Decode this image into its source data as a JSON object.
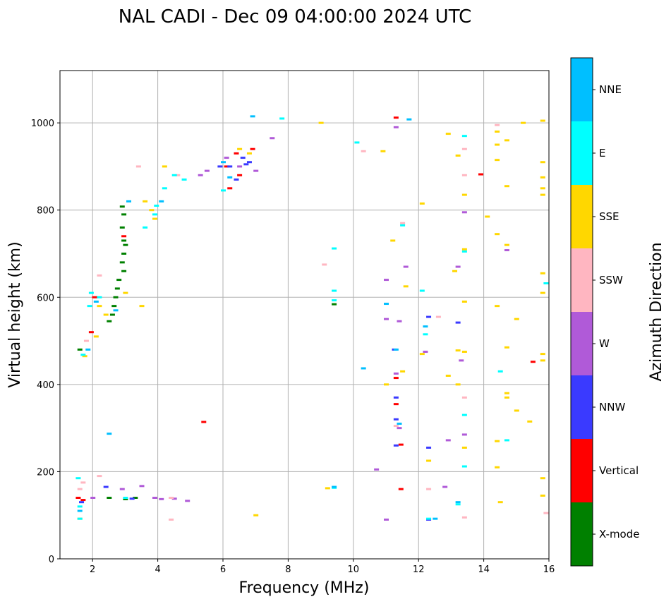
{
  "chart_data": {
    "type": "scatter",
    "title": "NAL CADI - Dec 09 04:00:00 2024 UTC",
    "xlabel": "Frequency (MHz)",
    "ylabel": "Virtual height (km)",
    "xlim": [
      1,
      16
    ],
    "ylim": [
      0,
      1120
    ],
    "xticks": [
      2,
      4,
      6,
      8,
      10,
      12,
      14,
      16
    ],
    "yticks": [
      0,
      200,
      400,
      600,
      800,
      1000
    ],
    "grid": true,
    "colorbar": {
      "title": "Azimuth Direction",
      "categories": [
        {
          "label": "X-mode",
          "color": "#008000"
        },
        {
          "label": "Vertical",
          "color": "#ff0000"
        },
        {
          "label": "NNW",
          "color": "#3a3aff"
        },
        {
          "label": "W",
          "color": "#b05ad8"
        },
        {
          "label": "SSW",
          "color": "#ffb6c1"
        },
        {
          "label": "SSE",
          "color": "#ffd700"
        },
        {
          "label": "E",
          "color": "#00ffff"
        },
        {
          "label": "NNE",
          "color": "#00bfff"
        }
      ]
    },
    "series": [
      {
        "name": "X-mode",
        "points": [
          [
            2.9,
            808
          ],
          [
            2.95,
            790
          ],
          [
            2.9,
            760
          ],
          [
            2.95,
            730
          ],
          [
            3.0,
            720
          ],
          [
            2.95,
            700
          ],
          [
            2.9,
            680
          ],
          [
            2.95,
            660
          ],
          [
            2.8,
            640
          ],
          [
            2.75,
            620
          ],
          [
            2.7,
            600
          ],
          [
            2.65,
            580
          ],
          [
            2.6,
            560
          ],
          [
            2.5,
            545
          ],
          [
            1.6,
            480
          ],
          [
            9.4,
            584
          ],
          [
            3.3,
            140
          ],
          [
            3.0,
            137
          ],
          [
            2.5,
            140
          ]
        ]
      },
      {
        "name": "Vertical",
        "points": [
          [
            1.55,
            140
          ],
          [
            1.7,
            135
          ],
          [
            2.05,
            600
          ],
          [
            1.95,
            520
          ],
          [
            6.2,
            850
          ],
          [
            6.1,
            900
          ],
          [
            6.5,
            880
          ],
          [
            6.9,
            940
          ],
          [
            5.4,
            314
          ],
          [
            11.3,
            1012
          ],
          [
            11.3,
            415
          ],
          [
            11.3,
            355
          ],
          [
            11.45,
            262
          ],
          [
            11.45,
            160
          ],
          [
            13.9,
            882
          ],
          [
            15.5,
            452
          ],
          [
            2.95,
            740
          ],
          [
            6.4,
            930
          ]
        ]
      },
      {
        "name": "NNW",
        "points": [
          [
            1.65,
            130
          ],
          [
            2.4,
            165
          ],
          [
            3.2,
            138
          ],
          [
            6.2,
            900
          ],
          [
            6.4,
            870
          ],
          [
            6.6,
            920
          ],
          [
            6.8,
            910
          ],
          [
            5.9,
            900
          ],
          [
            11.3,
            370
          ],
          [
            11.3,
            320
          ],
          [
            11.3,
            260
          ],
          [
            11.25,
            480
          ],
          [
            12.3,
            555
          ],
          [
            12.3,
            255
          ],
          [
            13.2,
            542
          ],
          [
            12.3,
            90
          ],
          [
            6.7,
            905
          ]
        ]
      },
      {
        "name": "W",
        "points": [
          [
            2.0,
            140
          ],
          [
            2.9,
            160
          ],
          [
            3.5,
            167
          ],
          [
            3.9,
            140
          ],
          [
            4.1,
            137
          ],
          [
            4.5,
            138
          ],
          [
            4.9,
            133
          ],
          [
            5.5,
            890
          ],
          [
            5.3,
            880
          ],
          [
            6.1,
            920
          ],
          [
            6.5,
            900
          ],
          [
            7.0,
            890
          ],
          [
            7.5,
            965
          ],
          [
            11.0,
            640
          ],
          [
            11.0,
            550
          ],
          [
            11.4,
            545
          ],
          [
            11.3,
            425
          ],
          [
            11.4,
            300
          ],
          [
            12.2,
            475
          ],
          [
            12.9,
            272
          ],
          [
            13.4,
            795
          ],
          [
            13.2,
            670
          ],
          [
            13.3,
            455
          ],
          [
            13.4,
            285
          ],
          [
            14.7,
            708
          ],
          [
            10.7,
            205
          ],
          [
            11.0,
            90
          ],
          [
            12.8,
            165
          ],
          [
            11.6,
            670
          ],
          [
            11.3,
            990
          ]
        ]
      },
      {
        "name": "SSW",
        "points": [
          [
            1.6,
            160
          ],
          [
            1.7,
            175
          ],
          [
            2.2,
            190
          ],
          [
            2.2,
            650
          ],
          [
            1.8,
            500
          ],
          [
            3.4,
            900
          ],
          [
            4.6,
            880
          ],
          [
            4.4,
            140
          ],
          [
            4.4,
            90
          ],
          [
            9.1,
            675
          ],
          [
            10.3,
            935
          ],
          [
            11.3,
            305
          ],
          [
            11.5,
            770
          ],
          [
            12.6,
            555
          ],
          [
            13.4,
            940
          ],
          [
            13.4,
            880
          ],
          [
            13.4,
            370
          ],
          [
            13.4,
            95
          ],
          [
            14.4,
            995
          ],
          [
            15.9,
            105
          ],
          [
            12.3,
            160
          ]
        ]
      },
      {
        "name": "SSE",
        "points": [
          [
            1.6,
            92
          ],
          [
            1.75,
            465
          ],
          [
            2.1,
            510
          ],
          [
            2.4,
            560
          ],
          [
            2.2,
            580
          ],
          [
            3.0,
            610
          ],
          [
            3.5,
            580
          ],
          [
            3.8,
            800
          ],
          [
            3.6,
            820
          ],
          [
            3.9,
            780
          ],
          [
            4.2,
            900
          ],
          [
            6.5,
            940
          ],
          [
            6.8,
            930
          ],
          [
            7.0,
            100
          ],
          [
            9.0,
            1000
          ],
          [
            10.9,
            935
          ],
          [
            11.0,
            400
          ],
          [
            11.2,
            730
          ],
          [
            11.6,
            625
          ],
          [
            11.5,
            430
          ],
          [
            12.1,
            815
          ],
          [
            12.1,
            470
          ],
          [
            12.3,
            225
          ],
          [
            12.9,
            975
          ],
          [
            13.2,
            925
          ],
          [
            13.1,
            660
          ],
          [
            13.2,
            478
          ],
          [
            13.2,
            400
          ],
          [
            12.9,
            420
          ],
          [
            13.4,
            835
          ],
          [
            13.4,
            710
          ],
          [
            13.4,
            590
          ],
          [
            13.4,
            475
          ],
          [
            13.4,
            255
          ],
          [
            14.1,
            785
          ],
          [
            14.4,
            980
          ],
          [
            14.4,
            950
          ],
          [
            14.4,
            915
          ],
          [
            14.4,
            745
          ],
          [
            14.4,
            580
          ],
          [
            14.4,
            270
          ],
          [
            14.5,
            130
          ],
          [
            14.4,
            210
          ],
          [
            14.7,
            960
          ],
          [
            14.7,
            855
          ],
          [
            14.7,
            720
          ],
          [
            14.7,
            485
          ],
          [
            14.7,
            380
          ],
          [
            14.7,
            370
          ],
          [
            15.0,
            550
          ],
          [
            15.0,
            340
          ],
          [
            15.2,
            1000
          ],
          [
            15.4,
            315
          ],
          [
            15.8,
            1005
          ],
          [
            15.8,
            910
          ],
          [
            15.8,
            875
          ],
          [
            15.8,
            850
          ],
          [
            15.8,
            835
          ],
          [
            15.8,
            655
          ],
          [
            15.8,
            610
          ],
          [
            15.8,
            470
          ],
          [
            15.8,
            455
          ],
          [
            15.8,
            185
          ],
          [
            15.8,
            145
          ],
          [
            9.2,
            162
          ]
        ]
      },
      {
        "name": "E",
        "points": [
          [
            1.55,
            185
          ],
          [
            1.6,
            120
          ],
          [
            1.7,
            468
          ],
          [
            1.9,
            580
          ],
          [
            1.95,
            610
          ],
          [
            2.2,
            600
          ],
          [
            3.0,
            140
          ],
          [
            3.6,
            760
          ],
          [
            3.9,
            790
          ],
          [
            3.95,
            810
          ],
          [
            4.2,
            850
          ],
          [
            4.5,
            880
          ],
          [
            4.8,
            870
          ],
          [
            6.0,
            845
          ],
          [
            7.8,
            1010
          ],
          [
            9.4,
            712
          ],
          [
            9.4,
            615
          ],
          [
            9.4,
            593
          ],
          [
            10.1,
            955
          ],
          [
            11.5,
            765
          ],
          [
            12.1,
            615
          ],
          [
            12.2,
            515
          ],
          [
            13.4,
            970
          ],
          [
            13.4,
            705
          ],
          [
            13.4,
            330
          ],
          [
            13.4,
            212
          ],
          [
            14.5,
            430
          ],
          [
            14.7,
            272
          ],
          [
            15.9,
            632
          ],
          [
            13.2,
            125
          ],
          [
            12.3,
            92
          ],
          [
            9.4,
            163
          ],
          [
            1.6,
            92
          ]
        ]
      },
      {
        "name": "NNE",
        "points": [
          [
            1.6,
            110
          ],
          [
            1.85,
            480
          ],
          [
            2.1,
            590
          ],
          [
            2.7,
            570
          ],
          [
            3.1,
            820
          ],
          [
            4.1,
            820
          ],
          [
            6.0,
            910
          ],
          [
            6.2,
            875
          ],
          [
            6.9,
            1015
          ],
          [
            10.3,
            437
          ],
          [
            11.0,
            585
          ],
          [
            11.3,
            480
          ],
          [
            11.4,
            310
          ],
          [
            12.2,
            533
          ],
          [
            13.2,
            130
          ],
          [
            11.7,
            1008
          ],
          [
            9.4,
            165
          ],
          [
            12.5,
            92
          ],
          [
            2.5,
            287
          ]
        ]
      }
    ]
  }
}
